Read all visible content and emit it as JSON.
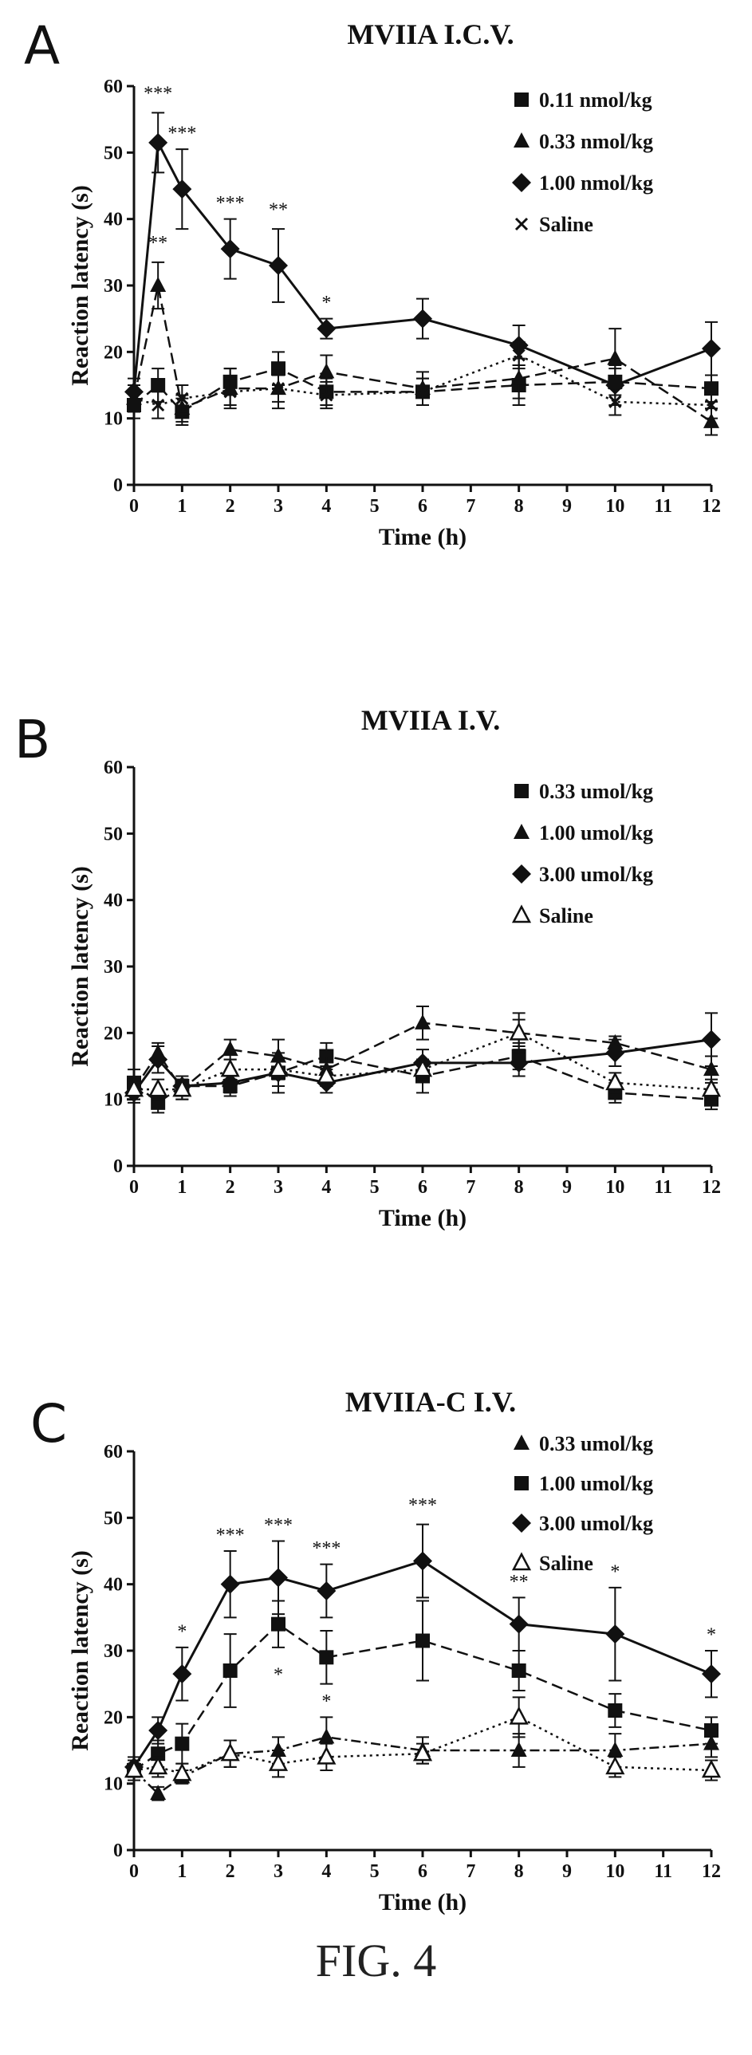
{
  "figure_caption": "FIG. 4",
  "chart_data": [
    {
      "panel": "A",
      "type": "line",
      "title": "MVIIA I.C.V.",
      "xlabel": "Time (h)",
      "ylabel": "Reaction latency (s)",
      "xlim": [
        0,
        12
      ],
      "ylim": [
        0,
        60
      ],
      "xticks": [
        0,
        1,
        2,
        3,
        4,
        5,
        6,
        7,
        8,
        9,
        10,
        11,
        12
      ],
      "yticks": [
        0,
        10,
        20,
        30,
        40,
        50,
        60
      ],
      "legend_position": "top-right",
      "series": [
        {
          "name": "0.11 nmol/kg",
          "marker": "square",
          "dash": "dashed",
          "x": [
            0,
            0.5,
            1,
            2,
            3,
            4,
            6,
            8,
            10,
            12
          ],
          "y": [
            12,
            15,
            11,
            15.5,
            17.5,
            14,
            14,
            15,
            15.5,
            14.5
          ],
          "err": [
            2,
            2.5,
            2,
            2,
            2.5,
            2,
            2,
            3,
            2,
            2
          ]
        },
        {
          "name": "0.33 nmol/kg",
          "marker": "triangle",
          "dash": "dashed",
          "x": [
            0,
            0.5,
            1,
            2,
            3,
            4,
            6,
            8,
            10,
            12
          ],
          "y": [
            13,
            30,
            11.5,
            14.5,
            14.5,
            17,
            14.5,
            16,
            19,
            9.5
          ],
          "err": [
            2,
            3.5,
            2,
            3,
            3,
            2.5,
            2.5,
            3,
            4.5,
            2
          ]
        },
        {
          "name": "1.00 nmol/kg",
          "marker": "diamond",
          "dash": "solid",
          "x": [
            0,
            0.5,
            1,
            2,
            3,
            4,
            6,
            8,
            10,
            12
          ],
          "y": [
            14,
            51.5,
            44.5,
            35.5,
            33,
            23.5,
            25,
            21,
            15,
            20.5
          ],
          "err": [
            2,
            4.5,
            6,
            4.5,
            5.5,
            1.5,
            3,
            3,
            3,
            4
          ]
        },
        {
          "name": "Saline",
          "marker": "x",
          "dash": "dotted",
          "x": [
            0,
            0.5,
            1,
            2,
            3,
            4,
            6,
            8,
            10,
            12
          ],
          "y": [
            13,
            12,
            13,
            14,
            14.5,
            13.5,
            14,
            19.5,
            12.5,
            12
          ],
          "err": [
            2,
            2,
            2,
            2,
            2,
            2,
            2,
            2,
            2,
            2
          ]
        }
      ],
      "annotations": [
        {
          "x": 0.5,
          "y": 58,
          "text": "***"
        },
        {
          "x": 1,
          "y": 52,
          "text": "***"
        },
        {
          "x": 2,
          "y": 41.5,
          "text": "***"
        },
        {
          "x": 3,
          "y": 40.5,
          "text": "**"
        },
        {
          "x": 4,
          "y": 26.5,
          "text": "*"
        },
        {
          "x": 0.5,
          "y": 35.5,
          "text": "**"
        }
      ]
    },
    {
      "panel": "B",
      "type": "line",
      "title": "MVIIA I.V.",
      "xlabel": "Time (h)",
      "ylabel": "Reaction latency (s)",
      "xlim": [
        0,
        12
      ],
      "ylim": [
        0,
        60
      ],
      "xticks": [
        0,
        1,
        2,
        3,
        4,
        5,
        6,
        7,
        8,
        9,
        10,
        11,
        12
      ],
      "yticks": [
        0,
        10,
        20,
        30,
        40,
        50,
        60
      ],
      "legend_position": "top-right",
      "series": [
        {
          "name": "0.33 umol/kg",
          "marker": "square",
          "dash": "dashed",
          "x": [
            0,
            0.5,
            1,
            2,
            3,
            4,
            6,
            8,
            10,
            12
          ],
          "y": [
            12.5,
            9.5,
            12,
            12,
            14,
            16.5,
            13.5,
            16.5,
            11,
            10
          ],
          "err": [
            2,
            1.5,
            1.5,
            1.5,
            2,
            2,
            2.5,
            2,
            1.5,
            1.5
          ]
        },
        {
          "name": "1.00 umol/kg",
          "marker": "triangle",
          "dash": "dashed",
          "x": [
            0,
            0.5,
            1,
            2,
            3,
            4,
            6,
            8,
            10,
            12
          ],
          "y": [
            11.5,
            17,
            11.5,
            17.5,
            16.5,
            14.5,
            21.5,
            20,
            18.5,
            14.5
          ],
          "err": [
            1.5,
            1.5,
            1.5,
            1.5,
            2.5,
            2,
            2.5,
            3,
            1,
            2
          ]
        },
        {
          "name": "3.00 umol/kg",
          "marker": "diamond",
          "dash": "solid",
          "x": [
            0,
            0.5,
            1,
            2,
            3,
            4,
            6,
            8,
            10,
            12
          ],
          "y": [
            11,
            16,
            12,
            12.5,
            14,
            12.5,
            15.5,
            15.5,
            17,
            19
          ],
          "err": [
            1.5,
            2,
            1.5,
            1.5,
            3,
            1.5,
            2,
            2,
            2,
            4
          ]
        },
        {
          "name": "Saline",
          "marker": "open-triangle",
          "dash": "dotted",
          "x": [
            0,
            0.5,
            1,
            2,
            3,
            4,
            6,
            8,
            10,
            12
          ],
          "y": [
            11.5,
            11.5,
            11.5,
            14.5,
            14.5,
            13.5,
            14.5,
            20,
            12.5,
            11.5
          ],
          "err": [
            1.5,
            1.5,
            1.5,
            1.5,
            1.5,
            1.5,
            1.5,
            2,
            1.5,
            1.5
          ]
        }
      ]
    },
    {
      "panel": "C",
      "type": "line",
      "title": "MVIIA-C I.V.",
      "xlabel": "Time (h)",
      "ylabel": "Reaction latency (s)",
      "xlim": [
        0,
        12
      ],
      "ylim": [
        0,
        60
      ],
      "xticks": [
        0,
        1,
        2,
        3,
        4,
        5,
        6,
        7,
        8,
        9,
        10,
        11,
        12
      ],
      "yticks": [
        0,
        10,
        20,
        30,
        40,
        50,
        60
      ],
      "legend_position": "top-right",
      "series": [
        {
          "name": "0.33 umol/kg",
          "marker": "triangle",
          "dash": "dash-dot",
          "x": [
            0,
            0.5,
            1,
            2,
            3,
            4,
            6,
            8,
            10,
            12
          ],
          "y": [
            12,
            8.5,
            11,
            14.5,
            15,
            17,
            15,
            15,
            15,
            16
          ],
          "err": [
            1,
            1,
            1,
            2,
            2,
            3,
            2,
            2.5,
            2.5,
            2
          ]
        },
        {
          "name": "1.00 umol/kg",
          "marker": "square",
          "dash": "dashed",
          "x": [
            0,
            0.5,
            1,
            2,
            3,
            4,
            6,
            8,
            10,
            12
          ],
          "y": [
            12,
            14.5,
            16,
            27,
            34,
            29,
            31.5,
            27,
            21,
            18
          ],
          "err": [
            1.5,
            2,
            3,
            5.5,
            3.5,
            4,
            6,
            3,
            2.5,
            2
          ]
        },
        {
          "name": "3.00 umol/kg",
          "marker": "diamond",
          "dash": "solid",
          "x": [
            0,
            0.5,
            1,
            2,
            3,
            4,
            6,
            8,
            10,
            12
          ],
          "y": [
            12.5,
            18,
            26.5,
            40,
            41,
            39,
            43.5,
            34,
            32.5,
            26.5
          ],
          "err": [
            1.5,
            2,
            4,
            5,
            5.5,
            4,
            5.5,
            4,
            7,
            3.5
          ]
        },
        {
          "name": "Saline",
          "marker": "open-triangle",
          "dash": "dotted",
          "x": [
            0,
            0.5,
            1,
            2,
            3,
            4,
            6,
            8,
            10,
            12
          ],
          "y": [
            12,
            12.5,
            11.5,
            14.5,
            13,
            14,
            14.5,
            20,
            12.5,
            12
          ],
          "err": [
            1,
            1.5,
            1.5,
            2,
            2,
            2,
            1.5,
            3,
            1.5,
            1.5
          ]
        }
      ],
      "annotations": [
        {
          "x": 1,
          "y": 32,
          "text": "*"
        },
        {
          "x": 2,
          "y": 46.5,
          "text": "***"
        },
        {
          "x": 3,
          "y": 48,
          "text": "***"
        },
        {
          "x": 4,
          "y": 44.5,
          "text": "***"
        },
        {
          "x": 6,
          "y": 51,
          "text": "***"
        },
        {
          "x": 8,
          "y": 39.5,
          "text": "**"
        },
        {
          "x": 10,
          "y": 41,
          "text": "*"
        },
        {
          "x": 12,
          "y": 31.5,
          "text": "*"
        },
        {
          "x": 3,
          "y": 25.5,
          "text": "*"
        },
        {
          "x": 4,
          "y": 21.5,
          "text": "*"
        }
      ]
    }
  ]
}
